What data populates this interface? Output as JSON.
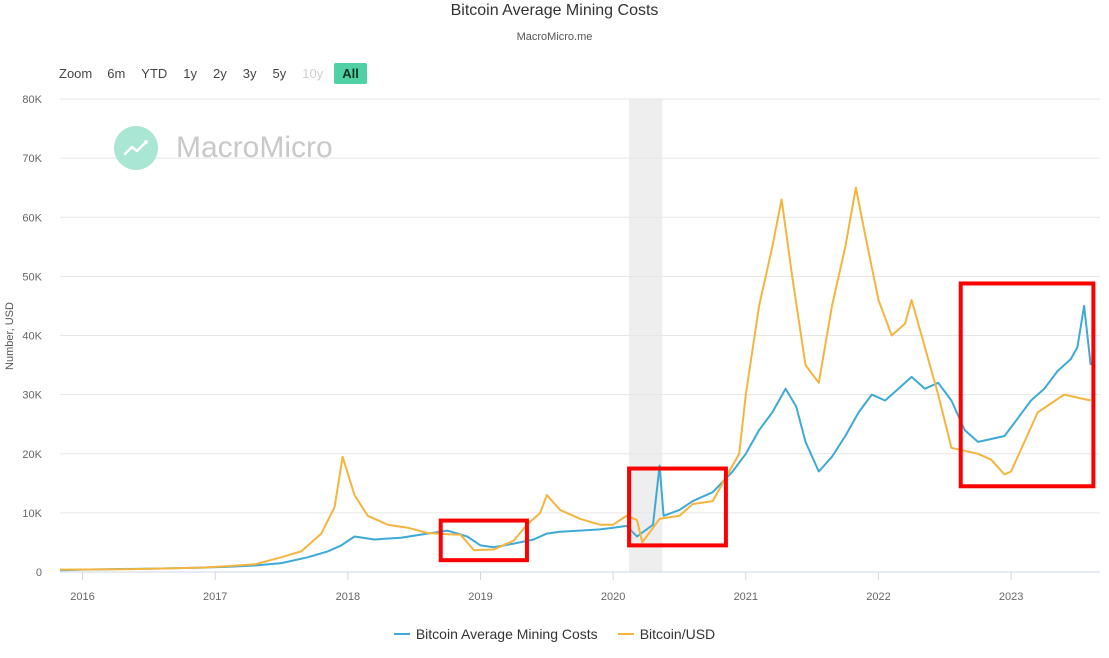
{
  "header": {
    "title": "Bitcoin Average Mining Costs",
    "subtitle": "MacroMicro.me"
  },
  "zoom": {
    "label": "Zoom",
    "buttons": [
      {
        "label": "6m",
        "state": "normal"
      },
      {
        "label": "YTD",
        "state": "normal"
      },
      {
        "label": "1y",
        "state": "normal"
      },
      {
        "label": "2y",
        "state": "normal"
      },
      {
        "label": "3y",
        "state": "normal"
      },
      {
        "label": "5y",
        "state": "normal"
      },
      {
        "label": "10y",
        "state": "disabled"
      },
      {
        "label": "All",
        "state": "active"
      }
    ]
  },
  "watermark": {
    "text": "MacroMicro",
    "icon": "chart-logo-icon"
  },
  "colors": {
    "mining_cost": "#3fa9d6",
    "bitcoin_usd": "#f4b53f",
    "grid": "#e6e6e6",
    "shade": "#eeeeee",
    "highlight_box": "#ff0000"
  },
  "chart_data": {
    "type": "line",
    "title": "Bitcoin Average Mining Costs",
    "subtitle": "MacroMicro.me",
    "ylabel": "Number, USD",
    "xlabel": "",
    "ylim": [
      0,
      80000
    ],
    "xlim": [
      2015.83,
      2023.67
    ],
    "y_ticks": [
      0,
      10000,
      20000,
      30000,
      40000,
      50000,
      60000,
      70000,
      80000
    ],
    "y_tick_labels": [
      "0",
      "10K",
      "20K",
      "30K",
      "40K",
      "50K",
      "60K",
      "70K",
      "80K"
    ],
    "x_ticks": [
      2016,
      2017,
      2018,
      2019,
      2020,
      2021,
      2022,
      2023
    ],
    "x_tick_labels": [
      "2016",
      "2017",
      "2018",
      "2019",
      "2020",
      "2021",
      "2022",
      "2023"
    ],
    "grid": "horizontal",
    "legend_position": "bottom-center",
    "shaded_region": [
      2020.12,
      2020.37
    ],
    "highlight_boxes": [
      {
        "x": [
          2018.7,
          2019.35
        ],
        "y": [
          2000,
          8700
        ]
      },
      {
        "x": [
          2020.12,
          2020.85
        ],
        "y": [
          4500,
          17500
        ]
      },
      {
        "x": [
          2022.62,
          2023.62
        ],
        "y": [
          14500,
          48800
        ]
      }
    ],
    "series": [
      {
        "name": "Bitcoin Average Mining Costs",
        "x": [
          2015.83,
          2016.0,
          2016.3,
          2016.6,
          2016.9,
          2017.1,
          2017.3,
          2017.5,
          2017.7,
          2017.85,
          2017.95,
          2018.05,
          2018.2,
          2018.4,
          2018.6,
          2018.75,
          2018.9,
          2019.0,
          2019.1,
          2019.25,
          2019.4,
          2019.5,
          2019.6,
          2019.75,
          2019.9,
          2020.0,
          2020.1,
          2020.18,
          2020.3,
          2020.35,
          2020.38,
          2020.5,
          2020.6,
          2020.75,
          2020.9,
          2021.0,
          2021.1,
          2021.2,
          2021.3,
          2021.38,
          2021.45,
          2021.55,
          2021.65,
          2021.75,
          2021.85,
          2021.95,
          2022.05,
          2022.15,
          2022.25,
          2022.35,
          2022.45,
          2022.55,
          2022.65,
          2022.75,
          2022.85,
          2022.95,
          2023.05,
          2023.15,
          2023.25,
          2023.35,
          2023.45,
          2023.5,
          2023.55,
          2023.6
        ],
        "values": [
          300,
          400,
          500,
          600,
          750,
          900,
          1100,
          1500,
          2500,
          3500,
          4500,
          6000,
          5500,
          5800,
          6500,
          7000,
          6000,
          4500,
          4200,
          4800,
          5500,
          6500,
          6800,
          7000,
          7200,
          7500,
          7800,
          6000,
          8000,
          18000,
          9500,
          10500,
          12000,
          13500,
          17000,
          20000,
          24000,
          27000,
          31000,
          28000,
          22000,
          17000,
          19500,
          23000,
          27000,
          30000,
          29000,
          31000,
          33000,
          31000,
          32000,
          29000,
          24000,
          22000,
          22500,
          23000,
          26000,
          29000,
          31000,
          34000,
          36000,
          38000,
          45000,
          35000
        ]
      },
      {
        "name": "Bitcoin/USD",
        "x": [
          2015.83,
          2016.0,
          2016.3,
          2016.6,
          2016.9,
          2017.1,
          2017.3,
          2017.5,
          2017.65,
          2017.8,
          2017.9,
          2017.96,
          2018.05,
          2018.15,
          2018.3,
          2018.45,
          2018.6,
          2018.75,
          2018.85,
          2018.95,
          2019.1,
          2019.25,
          2019.35,
          2019.45,
          2019.5,
          2019.6,
          2019.75,
          2019.9,
          2020.0,
          2020.1,
          2020.18,
          2020.22,
          2020.35,
          2020.5,
          2020.6,
          2020.75,
          2020.85,
          2020.95,
          2021.0,
          2021.1,
          2021.2,
          2021.27,
          2021.35,
          2021.45,
          2021.55,
          2021.65,
          2021.75,
          2021.83,
          2021.9,
          2022.0,
          2022.1,
          2022.2,
          2022.25,
          2022.35,
          2022.45,
          2022.55,
          2022.65,
          2022.75,
          2022.85,
          2022.95,
          2023.0,
          2023.1,
          2023.2,
          2023.3,
          2023.4,
          2023.5,
          2023.6
        ],
        "values": [
          400,
          430,
          450,
          600,
          750,
          1000,
          1300,
          2500,
          3500,
          6500,
          11000,
          19500,
          13000,
          9500,
          8000,
          7500,
          6600,
          6400,
          6300,
          3700,
          3800,
          5300,
          8000,
          10000,
          13000,
          10500,
          9000,
          8000,
          8000,
          9500,
          8800,
          5000,
          9000,
          9500,
          11500,
          12000,
          16000,
          20000,
          30000,
          45000,
          55000,
          63000,
          50000,
          35000,
          32000,
          45000,
          55000,
          65000,
          57000,
          46000,
          40000,
          42000,
          46000,
          38000,
          30000,
          21000,
          20500,
          20000,
          19000,
          16500,
          17000,
          22000,
          27000,
          28500,
          30000,
          29500,
          29000
        ]
      }
    ]
  },
  "legend": {
    "items": [
      {
        "label": "Bitcoin Average Mining Costs",
        "color": "#3fa9d6"
      },
      {
        "label": "Bitcoin/USD",
        "color": "#f4b53f"
      }
    ]
  }
}
